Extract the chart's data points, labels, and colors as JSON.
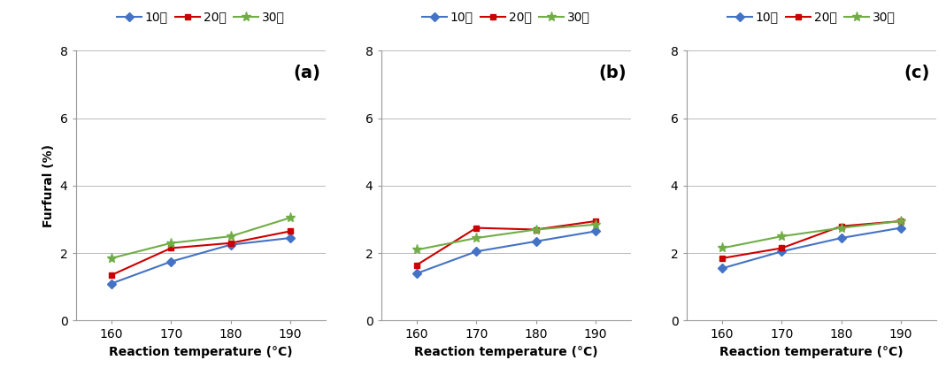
{
  "x": [
    160,
    170,
    180,
    190
  ],
  "panels": [
    {
      "label": "(a)",
      "series": {
        "10분": [
          1.1,
          1.75,
          2.25,
          2.45
        ],
        "20분": [
          1.35,
          2.15,
          2.3,
          2.65
        ],
        "30분": [
          1.85,
          2.3,
          2.5,
          3.05
        ]
      }
    },
    {
      "label": "(b)",
      "series": {
        "10분": [
          1.4,
          2.05,
          2.35,
          2.65
        ],
        "20분": [
          1.65,
          2.75,
          2.7,
          2.95
        ],
        "30분": [
          2.1,
          2.45,
          2.7,
          2.85
        ]
      }
    },
    {
      "label": "(c)",
      "series": {
        "10분": [
          1.55,
          2.05,
          2.45,
          2.75
        ],
        "20분": [
          1.85,
          2.15,
          2.8,
          2.95
        ],
        "30분": [
          2.15,
          2.5,
          2.75,
          2.95
        ]
      }
    }
  ],
  "series_keys": [
    "10분",
    "20분",
    "30분"
  ],
  "colors": [
    "#4472C4",
    "#CC0000",
    "#70AD47"
  ],
  "markers": [
    "D",
    "s",
    "*"
  ],
  "marker_sizes": [
    5,
    5,
    8
  ],
  "ylabel": "Furfural (%)",
  "xlabel": "Reaction temperature (°C)",
  "ylim": [
    0,
    8
  ],
  "yticks": [
    0,
    2,
    4,
    6,
    8
  ],
  "background_color": "#FFFFFF",
  "grid_color": "#BBBBBB"
}
